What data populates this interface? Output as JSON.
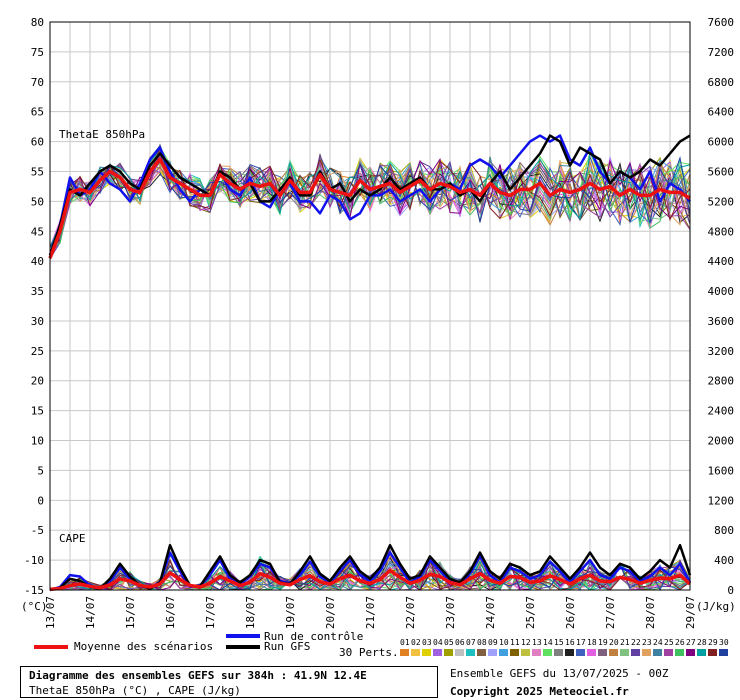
{
  "colors": {
    "mean": "#ee1111",
    "control": "#1111ee",
    "gfs": "#000000",
    "grid": "#c8c8c8",
    "perturbations": [
      "#e08020",
      "#f0c040",
      "#e0d000",
      "#a060e0",
      "#a0a000",
      "#c0c0c0",
      "#20c0c0",
      "#806040",
      "#a0a0ff",
      "#40a0e0",
      "#806000",
      "#c0c040",
      "#e080c0",
      "#60e060",
      "#808080",
      "#202020",
      "#4060c0",
      "#e060e0",
      "#806080",
      "#c08040",
      "#80c080",
      "#6040a0",
      "#e0a060",
      "#4080a0",
      "#a040a0",
      "#40c060",
      "#800080",
      "#00a0a0",
      "#802020",
      "#2040a0"
    ]
  },
  "chart_data": {
    "type": "line",
    "x_labels": [
      "13/07",
      "14/07",
      "15/07",
      "16/07",
      "17/07",
      "18/07",
      "19/07",
      "20/07",
      "21/07",
      "22/07",
      "23/07",
      "24/07",
      "25/07",
      "26/07",
      "27/07",
      "28/07",
      "29/07"
    ],
    "y_left": {
      "unit": "(°C)",
      "ticks": [
        80,
        75,
        70,
        65,
        60,
        55,
        50,
        45,
        40,
        35,
        30,
        25,
        20,
        15,
        10,
        5,
        0,
        -5,
        -10,
        -15
      ],
      "range": [
        -15,
        80
      ]
    },
    "y_right": {
      "unit": "(J/kg)",
      "ticks": [
        7600,
        7200,
        6800,
        6400,
        6000,
        5600,
        5200,
        4800,
        4400,
        4000,
        3600,
        3200,
        2800,
        2400,
        2000,
        1600,
        1200,
        800,
        400,
        0
      ],
      "range": [
        0,
        7600
      ]
    },
    "thetae_label": "ThetaE 850hPa",
    "cape_label": "CAPE",
    "series": [
      {
        "name": "Moyenne des scénarios",
        "variable": "ThetaE 850hPa",
        "values": [
          40.5,
          45,
          51.5,
          52,
          51.5,
          53.5,
          55,
          54,
          52,
          51.5,
          55,
          57,
          54,
          53,
          52,
          51,
          51,
          54.5,
          53,
          52,
          53,
          52.5,
          53,
          51,
          53.5,
          51.5,
          51.5,
          54.5,
          52,
          51.5,
          51,
          53.5,
          52,
          52.5,
          53,
          51.5,
          52.5,
          53.5,
          52,
          53,
          52.5,
          51.5,
          52,
          51,
          53,
          51.5,
          51,
          52,
          52,
          53,
          51,
          52,
          51.5,
          52,
          53,
          52,
          52.5,
          51,
          52,
          51,
          51,
          52,
          51.5,
          51.5,
          50.5
        ]
      },
      {
        "name": "Run de contrôle",
        "variable": "ThetaE 850hPa",
        "values": [
          41,
          46,
          54,
          51,
          52,
          55,
          53,
          52,
          50,
          53,
          57,
          59,
          55,
          52,
          50,
          52,
          51,
          55,
          52,
          51,
          54,
          50,
          49,
          52,
          53,
          50,
          50,
          48,
          51,
          50,
          47,
          48,
          51,
          51,
          52,
          50,
          51,
          52,
          50,
          52,
          53,
          52,
          56,
          57,
          56,
          54,
          56,
          58,
          60,
          61,
          60,
          61,
          57,
          56,
          59,
          55,
          53,
          55,
          54,
          52,
          55,
          50,
          53,
          52,
          50
        ]
      },
      {
        "name": "Run GFS",
        "variable": "ThetaE 850hPa",
        "values": [
          41,
          46,
          52,
          51,
          53,
          55,
          56,
          55,
          53,
          52,
          56,
          58,
          56,
          54,
          53,
          52,
          51,
          55,
          54,
          52,
          53,
          50,
          50,
          52,
          54,
          51,
          51,
          55,
          52,
          53,
          50,
          52,
          51,
          52,
          54,
          52,
          53,
          54,
          52,
          52,
          53,
          51,
          52,
          50,
          53,
          55,
          52,
          54,
          56,
          58,
          61,
          60,
          56,
          59,
          58,
          57,
          53,
          55,
          54,
          55,
          57,
          56,
          58,
          60,
          61
        ]
      },
      {
        "name": "Moyenne des scénarios",
        "variable": "CAPE",
        "values": [
          10,
          20,
          60,
          80,
          50,
          30,
          70,
          150,
          120,
          60,
          40,
          80,
          230,
          140,
          60,
          40,
          90,
          180,
          120,
          60,
          100,
          220,
          170,
          90,
          70,
          140,
          190,
          110,
          80,
          150,
          200,
          120,
          90,
          140,
          260,
          170,
          90,
          130,
          210,
          180,
          100,
          70,
          150,
          220,
          130,
          90,
          180,
          170,
          100,
          120,
          190,
          140,
          80,
          150,
          200,
          120,
          110,
          170,
          140,
          90,
          130,
          160,
          150,
          200,
          80
        ]
      },
      {
        "name": "Run de contrôle",
        "variable": "CAPE",
        "values": [
          0,
          40,
          200,
          180,
          60,
          20,
          120,
          300,
          150,
          50,
          30,
          90,
          500,
          250,
          40,
          60,
          200,
          400,
          150,
          80,
          180,
          350,
          300,
          120,
          90,
          200,
          380,
          180,
          100,
          250,
          400,
          200,
          120,
          250,
          500,
          300,
          100,
          180,
          400,
          260,
          120,
          80,
          220,
          450,
          200,
          100,
          300,
          250,
          150,
          200,
          380,
          250,
          100,
          250,
          400,
          200,
          150,
          300,
          250,
          120,
          180,
          300,
          200,
          350,
          100
        ]
      },
      {
        "name": "Run GFS",
        "variable": "CAPE",
        "values": [
          0,
          30,
          150,
          120,
          40,
          20,
          150,
          350,
          180,
          60,
          20,
          100,
          600,
          300,
          60,
          50,
          250,
          450,
          200,
          100,
          200,
          400,
          350,
          100,
          80,
          250,
          450,
          220,
          120,
          300,
          450,
          250,
          150,
          300,
          600,
          350,
          150,
          200,
          450,
          300,
          150,
          100,
          250,
          500,
          250,
          150,
          350,
          300,
          200,
          250,
          450,
          300,
          150,
          300,
          500,
          300,
          200,
          350,
          300,
          150,
          250,
          400,
          300,
          600,
          200
        ]
      }
    ]
  },
  "legend": {
    "mean_label": "Moyenne des scénarios",
    "control_label": "Run de contrôle",
    "gfs_label": "Run GFS",
    "perts_label": "30 Perts.",
    "pert_numbers": [
      "01",
      "02",
      "03",
      "04",
      "05",
      "06",
      "07",
      "08",
      "09",
      "10",
      "11",
      "12",
      "13",
      "14",
      "15",
      "16",
      "17",
      "18",
      "19",
      "20",
      "21",
      "22",
      "23",
      "24",
      "25",
      "26",
      "27",
      "28",
      "29",
      "30"
    ]
  },
  "info": {
    "line1": "Diagramme des ensembles GEFS sur 384h : 41.9N 12.4E",
    "line2": "ThetaE 850hPa (°C) , CAPE (J/kg)",
    "run": "Ensemble GEFS du 13/07/2025 - 00Z",
    "copyright": "Copyright 2025 Meteociel.fr"
  }
}
